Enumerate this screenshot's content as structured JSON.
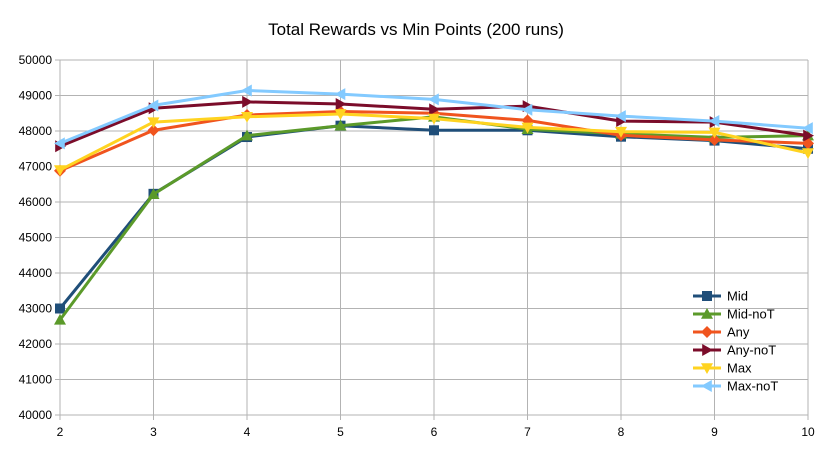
{
  "chart_data": {
    "type": "line",
    "title": "Total Rewards vs Min Points (200 runs)",
    "xlabel": "",
    "ylabel": "",
    "x": [
      2,
      3,
      4,
      5,
      6,
      7,
      8,
      9,
      10
    ],
    "xlim": [
      2,
      10
    ],
    "ylim": [
      40000,
      50000
    ],
    "y_ticks": [
      40000,
      41000,
      42000,
      43000,
      44000,
      45000,
      46000,
      47000,
      48000,
      49000,
      50000
    ],
    "grid": true,
    "legend_position": "bottom-right",
    "series": [
      {
        "name": "Mid",
        "color": "#1f4e79",
        "marker": "square",
        "values": [
          43000,
          46230,
          47830,
          48150,
          48020,
          48020,
          47840,
          47730,
          47500
        ]
      },
      {
        "name": "Mid-noT",
        "color": "#5b9a2a",
        "marker": "triangle-up",
        "values": [
          42680,
          46220,
          47870,
          48150,
          48400,
          48050,
          47920,
          47820,
          47870
        ]
      },
      {
        "name": "Any",
        "color": "#f0541e",
        "marker": "diamond",
        "values": [
          46880,
          48020,
          48450,
          48550,
          48500,
          48300,
          47880,
          47750,
          47650
        ]
      },
      {
        "name": "Any-noT",
        "color": "#7b0c2a",
        "marker": "triangle-right",
        "values": [
          47570,
          48640,
          48820,
          48760,
          48610,
          48700,
          48280,
          48250,
          47870
        ]
      },
      {
        "name": "Max",
        "color": "#ffd320",
        "marker": "triangle-down",
        "values": [
          46900,
          48250,
          48400,
          48480,
          48350,
          48100,
          47980,
          47960,
          47380
        ]
      },
      {
        "name": "Max-noT",
        "color": "#83caff",
        "marker": "triangle-left",
        "values": [
          47650,
          48720,
          49140,
          49040,
          48890,
          48600,
          48420,
          48280,
          48080
        ]
      }
    ]
  }
}
